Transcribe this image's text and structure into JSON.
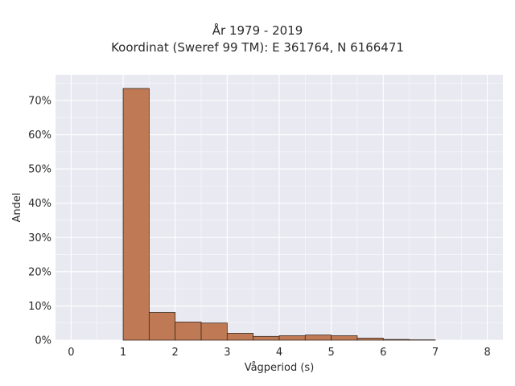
{
  "chart_data": {
    "type": "bar",
    "title": "År 1979 - 2019",
    "subtitle": "Koordinat (Sweref 99 TM): E 361764, N 6166471",
    "xlabel": "Vågperiod (s)",
    "ylabel": "Andel",
    "xlim": [
      -0.3,
      8.3
    ],
    "ylim": [
      0,
      0.775
    ],
    "xticks": [
      0,
      1,
      2,
      3,
      4,
      5,
      6,
      7,
      8
    ],
    "xtick_labels": [
      "0",
      "1",
      "2",
      "3",
      "4",
      "5",
      "6",
      "7",
      "8"
    ],
    "yticks": [
      0,
      0.1,
      0.2,
      0.3,
      0.4,
      0.5,
      0.6,
      0.7
    ],
    "ytick_labels": [
      "0%",
      "10%",
      "20%",
      "30%",
      "40%",
      "50%",
      "60%",
      "70%"
    ],
    "grid": true,
    "bar_color": "#bf7a55",
    "bar_edge_color": "#3a2a20",
    "bins": [
      {
        "x0": 1.0,
        "x1": 1.5,
        "value": 0.735
      },
      {
        "x0": 1.5,
        "x1": 2.0,
        "value": 0.081
      },
      {
        "x0": 2.0,
        "x1": 2.5,
        "value": 0.053
      },
      {
        "x0": 2.5,
        "x1": 3.0,
        "value": 0.05
      },
      {
        "x0": 3.0,
        "x1": 3.5,
        "value": 0.02
      },
      {
        "x0": 3.5,
        "x1": 4.0,
        "value": 0.011
      },
      {
        "x0": 4.0,
        "x1": 4.5,
        "value": 0.013
      },
      {
        "x0": 4.5,
        "x1": 5.0,
        "value": 0.015
      },
      {
        "x0": 5.0,
        "x1": 5.5,
        "value": 0.013
      },
      {
        "x0": 5.5,
        "x1": 6.0,
        "value": 0.006
      },
      {
        "x0": 6.0,
        "x1": 6.5,
        "value": 0.002
      },
      {
        "x0": 6.5,
        "x1": 7.0,
        "value": 0.001
      }
    ]
  },
  "colors": {
    "plot_background": "#e9e9f1",
    "grid": "#ffffff"
  }
}
